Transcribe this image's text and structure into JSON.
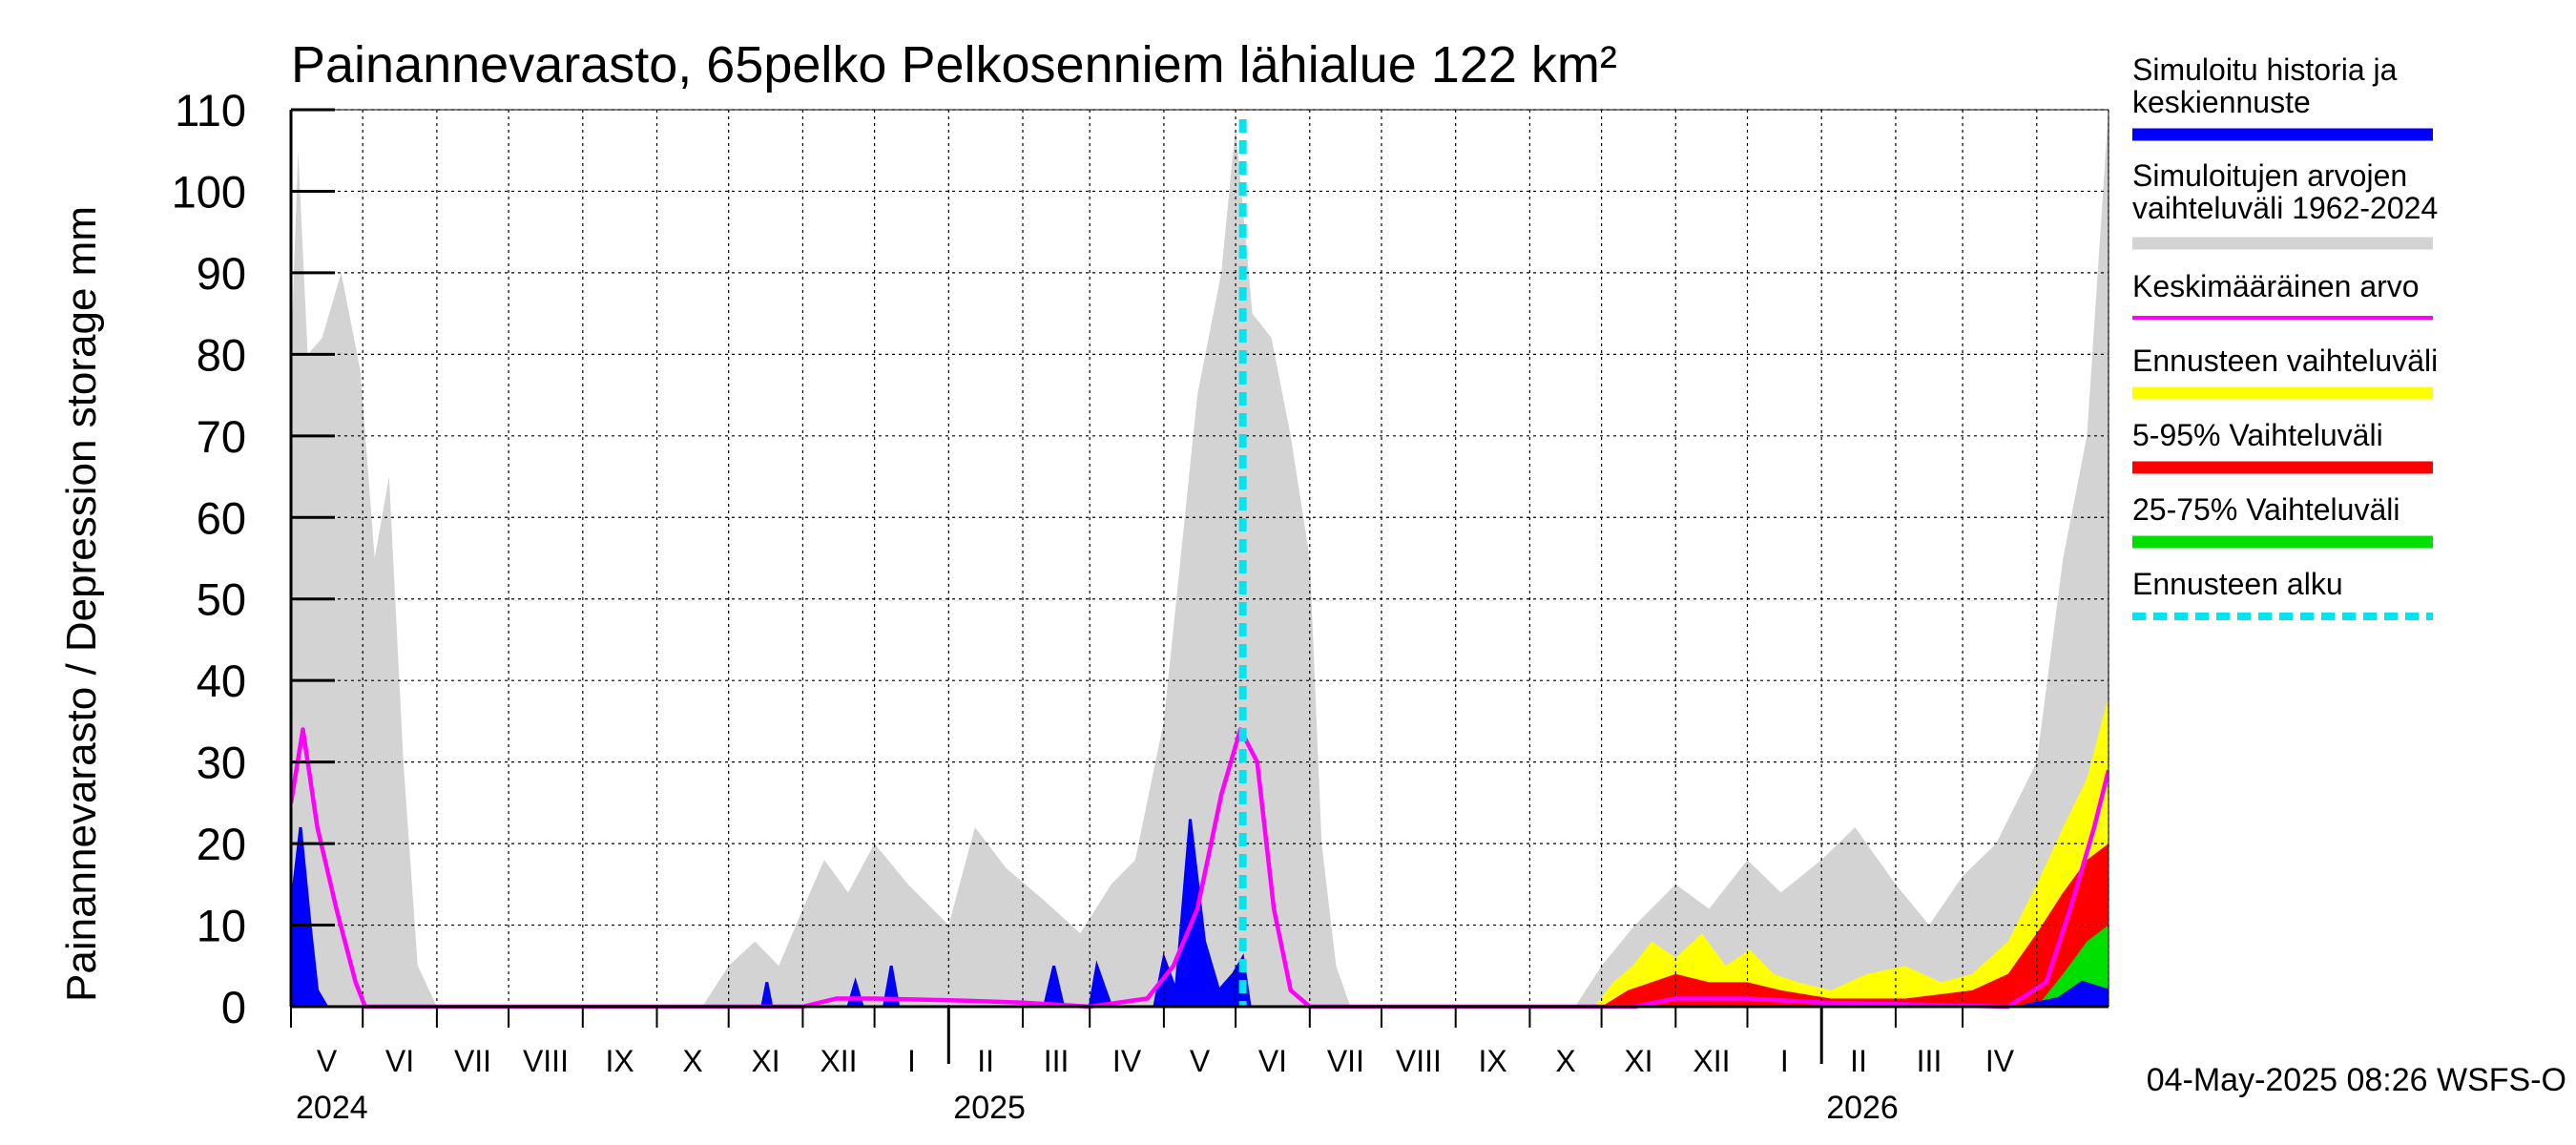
{
  "chart_data": {
    "type": "area",
    "title": "Painannevarasto, 65pelko Pelkosenniem lähialue 122 km²",
    "ylabel": "Painannevarasto / Depression storage    mm",
    "ylim": [
      0,
      110
    ],
    "yticks": [
      0,
      10,
      20,
      30,
      40,
      50,
      60,
      70,
      80,
      90,
      100,
      110
    ],
    "x_start": "2024-04-01",
    "x_end": "2026-05-01",
    "forecast_start": "2025-05-04",
    "months": [
      "V",
      "VI",
      "VII",
      "VIII",
      "IX",
      "X",
      "XI",
      "XII",
      "I",
      "II",
      "III",
      "IV",
      "V",
      "VI",
      "VII",
      "VIII",
      "IX",
      "X",
      "XI",
      "XII",
      "I",
      "II",
      "III",
      "IV"
    ],
    "years": [
      "2024",
      "2025",
      "2026"
    ],
    "grid": true,
    "legend_position": "right",
    "series": [
      {
        "name": "Simuloitu historia ja keskiennuste",
        "color": "#0000ff"
      },
      {
        "name": "Simuloitujen arvojen vaihteluväli 1962-2024",
        "color": "#d3d3d3"
      },
      {
        "name": "Keskimääräinen arvo",
        "color": "#ff00ff"
      },
      {
        "name": "Ennusteen vaihteluväli",
        "color": "#ffff00"
      },
      {
        "name": "5-95% Vaihteluväli",
        "color": "#ff0000"
      },
      {
        "name": "25-75% Vaihteluväli",
        "color": "#00e000"
      },
      {
        "name": "Ennusteen alku",
        "color": "#00e5ee"
      }
    ],
    "range_hist": [
      [
        "2024-04-01",
        80
      ],
      [
        "2024-04-04",
        105
      ],
      [
        "2024-04-08",
        80
      ],
      [
        "2024-04-14",
        82
      ],
      [
        "2024-04-22",
        90
      ],
      [
        "2024-04-30",
        78
      ],
      [
        "2024-05-06",
        55
      ],
      [
        "2024-05-12",
        65
      ],
      [
        "2024-05-18",
        30
      ],
      [
        "2024-05-24",
        5
      ],
      [
        "2024-06-01",
        0
      ],
      [
        "2024-09-20",
        0
      ],
      [
        "2024-10-01",
        5
      ],
      [
        "2024-10-12",
        8
      ],
      [
        "2024-10-22",
        5
      ],
      [
        "2024-11-01",
        12
      ],
      [
        "2024-11-10",
        18
      ],
      [
        "2024-11-20",
        14
      ],
      [
        "2024-12-01",
        20
      ],
      [
        "2024-12-15",
        15
      ],
      [
        "2025-01-01",
        10
      ],
      [
        "2025-01-12",
        22
      ],
      [
        "2025-01-25",
        17
      ],
      [
        "2025-02-10",
        13
      ],
      [
        "2025-02-25",
        9
      ],
      [
        "2025-03-10",
        15
      ],
      [
        "2025-03-20",
        18
      ],
      [
        "2025-04-01",
        35
      ],
      [
        "2025-04-15",
        75
      ],
      [
        "2025-04-25",
        90
      ],
      [
        "2025-05-01",
        108
      ],
      [
        "2025-05-08",
        85
      ],
      [
        "2025-05-16",
        82
      ],
      [
        "2025-05-24",
        70
      ],
      [
        "2025-06-01",
        55
      ],
      [
        "2025-06-06",
        20
      ],
      [
        "2025-06-12",
        5
      ],
      [
        "2025-06-18",
        0
      ],
      [
        "2025-09-20",
        0
      ],
      [
        "2025-10-01",
        5
      ],
      [
        "2025-10-15",
        10
      ],
      [
        "2025-11-01",
        15
      ],
      [
        "2025-11-15",
        12
      ],
      [
        "2025-12-01",
        18
      ],
      [
        "2025-12-15",
        14
      ],
      [
        "2026-01-01",
        18
      ],
      [
        "2026-01-15",
        22
      ],
      [
        "2026-02-01",
        15
      ],
      [
        "2026-02-15",
        10
      ],
      [
        "2026-03-01",
        16
      ],
      [
        "2026-03-15",
        20
      ],
      [
        "2026-04-01",
        30
      ],
      [
        "2026-04-12",
        55
      ],
      [
        "2026-04-22",
        70
      ],
      [
        "2026-05-01",
        110
      ]
    ],
    "blue": [
      [
        "2024-04-01",
        12
      ],
      [
        "2024-04-05",
        22
      ],
      [
        "2024-04-09",
        10
      ],
      [
        "2024-04-12",
        2
      ],
      [
        "2024-04-16",
        0
      ],
      [
        "2024-10-15",
        0
      ],
      [
        "2024-10-17",
        3
      ],
      [
        "2024-10-19",
        0
      ],
      [
        "2024-11-20",
        0
      ],
      [
        "2024-11-23",
        3
      ],
      [
        "2024-11-26",
        0
      ],
      [
        "2024-12-05",
        0
      ],
      [
        "2024-12-08",
        5
      ],
      [
        "2024-12-11",
        0
      ],
      [
        "2025-02-10",
        0
      ],
      [
        "2025-02-14",
        5
      ],
      [
        "2025-02-18",
        0
      ],
      [
        "2025-03-01",
        0
      ],
      [
        "2025-03-04",
        5
      ],
      [
        "2025-03-10",
        0
      ],
      [
        "2025-03-28",
        0
      ],
      [
        "2025-04-01",
        6
      ],
      [
        "2025-04-06",
        2
      ],
      [
        "2025-04-12",
        23
      ],
      [
        "2025-04-18",
        8
      ],
      [
        "2025-04-24",
        2
      ],
      [
        "2025-04-30",
        4
      ],
      [
        "2025-05-04",
        6
      ],
      [
        "2025-05-07",
        0
      ],
      [
        "2026-03-25",
        0
      ],
      [
        "2026-04-10",
        1
      ],
      [
        "2026-04-20",
        3
      ],
      [
        "2026-05-01",
        2
      ]
    ],
    "yellow_range": [
      [
        "2025-09-28",
        0
      ],
      [
        "2025-10-06",
        3
      ],
      [
        "2025-10-14",
        5
      ],
      [
        "2025-10-22",
        8
      ],
      [
        "2025-11-01",
        6
      ],
      [
        "2025-11-12",
        9
      ],
      [
        "2025-11-22",
        5
      ],
      [
        "2025-12-02",
        7
      ],
      [
        "2025-12-12",
        4
      ],
      [
        "2025-12-22",
        3
      ],
      [
        "2026-01-05",
        2
      ],
      [
        "2026-01-20",
        4
      ],
      [
        "2026-02-05",
        5
      ],
      [
        "2026-02-20",
        3
      ],
      [
        "2026-03-05",
        4
      ],
      [
        "2026-03-20",
        8
      ],
      [
        "2026-04-01",
        15
      ],
      [
        "2026-04-12",
        22
      ],
      [
        "2026-04-22",
        28
      ],
      [
        "2026-05-01",
        38
      ]
    ],
    "red_range": [
      [
        "2025-10-01",
        0
      ],
      [
        "2025-10-12",
        2
      ],
      [
        "2025-10-22",
        3
      ],
      [
        "2025-11-01",
        4
      ],
      [
        "2025-11-15",
        3
      ],
      [
        "2025-12-01",
        3
      ],
      [
        "2025-12-15",
        2
      ],
      [
        "2026-01-05",
        1
      ],
      [
        "2026-02-05",
        1
      ],
      [
        "2026-03-05",
        2
      ],
      [
        "2026-03-20",
        4
      ],
      [
        "2026-04-01",
        9
      ],
      [
        "2026-04-12",
        14
      ],
      [
        "2026-04-22",
        18
      ],
      [
        "2026-05-01",
        20
      ]
    ],
    "green_range": [
      [
        "2026-04-01",
        0
      ],
      [
        "2026-04-12",
        4
      ],
      [
        "2026-04-22",
        8
      ],
      [
        "2026-05-01",
        10
      ]
    ],
    "mean": [
      [
        "2024-04-01",
        25
      ],
      [
        "2024-04-06",
        34
      ],
      [
        "2024-04-12",
        22
      ],
      [
        "2024-04-20",
        12
      ],
      [
        "2024-04-28",
        3
      ],
      [
        "2024-05-02",
        0
      ],
      [
        "2024-11-01",
        0
      ],
      [
        "2024-11-15",
        1
      ],
      [
        "2024-12-01",
        1
      ],
      [
        "2025-01-01",
        0.8
      ],
      [
        "2025-02-01",
        0.5
      ],
      [
        "2025-03-01",
        0
      ],
      [
        "2025-03-25",
        1
      ],
      [
        "2025-04-05",
        5
      ],
      [
        "2025-04-15",
        12
      ],
      [
        "2025-04-25",
        26
      ],
      [
        "2025-05-03",
        34
      ],
      [
        "2025-05-10",
        30
      ],
      [
        "2025-05-17",
        12
      ],
      [
        "2025-05-24",
        2
      ],
      [
        "2025-06-01",
        0
      ],
      [
        "2025-10-15",
        0
      ],
      [
        "2025-11-01",
        1
      ],
      [
        "2025-12-01",
        1
      ],
      [
        "2026-01-01",
        0.5
      ],
      [
        "2026-03-20",
        0
      ],
      [
        "2026-04-05",
        3
      ],
      [
        "2026-04-15",
        12
      ],
      [
        "2026-04-25",
        22
      ],
      [
        "2026-05-01",
        29
      ]
    ]
  },
  "footer": "04-May-2025 08:26 WSFS-O"
}
